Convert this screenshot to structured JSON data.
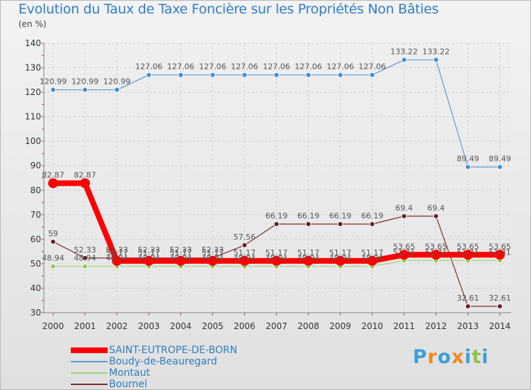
{
  "title": "Evolution du Taux de Taxe Foncière sur les Propriétés Non Bâties",
  "unit_label": "(en %)",
  "logo": {
    "text": [
      "P",
      "r",
      "o",
      "x",
      "i",
      "t",
      "i"
    ],
    "colors": [
      "#3d9ed8",
      "#f08a1e",
      "#3d9ed8",
      "#f08a1e",
      "#3d9ed8",
      "#8bc34a",
      "#3d9ed8"
    ]
  },
  "chart_data": {
    "type": "line",
    "title": "Evolution du Taux de Taxe Foncière sur les Propriétés Non Bâties",
    "ylabel": "(en %)",
    "xlabel": "",
    "x": [
      "2000",
      "2001",
      "2002",
      "2003",
      "2004",
      "2005",
      "2006",
      "2007",
      "2008",
      "2009",
      "2010",
      "2011",
      "2012",
      "2013",
      "2014"
    ],
    "ylim": [
      30,
      140
    ],
    "yticks": [
      30,
      40,
      50,
      60,
      70,
      80,
      90,
      100,
      110,
      120,
      130,
      140
    ],
    "grid": true,
    "series": [
      {
        "name": "Boudy-de-Beauregard",
        "color": "#5b9bd5",
        "marker": "#3d8fd0",
        "width": 1.2,
        "values": [
          120.99,
          120.99,
          120.99,
          127.06,
          127.06,
          127.06,
          127.06,
          127.06,
          127.06,
          127.06,
          127.06,
          133.22,
          133.22,
          89.49,
          89.49
        ],
        "labels": [
          "120.99",
          "120.99",
          "120.99",
          "127.06",
          "127.06",
          "127.06",
          "127.06",
          "127.06",
          "127.06",
          "127.06",
          "127.06",
          "133.22",
          "133.22",
          "89.49",
          "89.49"
        ]
      },
      {
        "name": "Bournel",
        "color": "#7a3030",
        "marker": "#6a1f1f",
        "width": 1.2,
        "values": [
          59,
          52.33,
          52.33,
          52.33,
          52.33,
          52.33,
          57.56,
          66.19,
          66.19,
          66.19,
          66.19,
          69.4,
          69.4,
          32.61,
          32.61
        ],
        "labels": [
          "59",
          "52.33",
          "52.33",
          "52.33",
          "52.33",
          "52.33",
          "57.56",
          "66.19",
          "66.19",
          "66.19",
          "66.19",
          "69.4",
          "69.4",
          "32.61",
          "32.61"
        ]
      },
      {
        "name": "Montaut",
        "color": "#9fd37a",
        "marker": "#8ccc52",
        "width": 1.2,
        "values": [
          48.94,
          48.94,
          48.94,
          48.94,
          48.94,
          48.94,
          48.94,
          48.94,
          48.94,
          48.94,
          48.94,
          51.31,
          51.31,
          51.31,
          51.31
        ],
        "labels": [
          "48.94",
          "48.94",
          "48.94",
          "48.94",
          "48.94",
          "48.94",
          "48.94",
          "48.94",
          "48.94",
          "48.94",
          "48.94",
          "51.31",
          "51.31",
          "51.31",
          "51.31"
        ]
      },
      {
        "name": "SAINT-EUTROPE-DE-BORN",
        "color": "#ff0000",
        "marker": "#ff0000",
        "width": 8,
        "values": [
          82.87,
          82.87,
          51.17,
          51.17,
          51.17,
          51.17,
          51.17,
          51.17,
          51.17,
          51.17,
          51.17,
          53.65,
          53.65,
          53.65,
          53.65
        ],
        "labels": [
          "82.87",
          "82.87",
          "51.17",
          "51.17",
          "51.17",
          "51.17",
          "51.17",
          "51.17",
          "51.17",
          "51.17",
          "51.17",
          "53.65",
          "53.65",
          "53.65",
          "53.65"
        ]
      }
    ],
    "legend": [
      "SAINT-EUTROPE-DE-BORN",
      "Boudy-de-Beauregard",
      "Montaut",
      "Bournel"
    ]
  }
}
